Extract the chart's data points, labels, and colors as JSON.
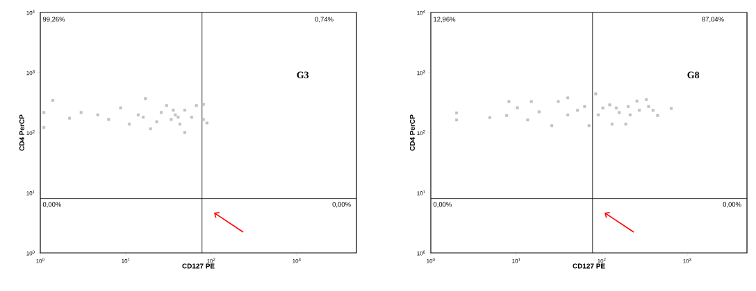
{
  "chart_data": [
    {
      "type": "scatter",
      "xlabel": "CD127 PE",
      "ylabel": "CD4 PerCP",
      "log": "xy",
      "marker": "square",
      "xlim": [
        1,
        5000
      ],
      "ylim": [
        1,
        10000
      ],
      "xticks": [
        {
          "value": 1,
          "label": "10$^{0}$"
        },
        {
          "value": 10,
          "label": "10$^{1}$"
        },
        {
          "value": 100,
          "label": "10$^{2}$"
        },
        {
          "value": 1000,
          "label": "10$^{3}$"
        }
      ],
      "yticks": [
        {
          "value": 1,
          "label": "10$^{0}$"
        },
        {
          "value": 10,
          "label": "10$^{1}$"
        },
        {
          "value": 100,
          "label": "10$^{2}$"
        },
        {
          "value": 1000,
          "label": "10$^{3}$"
        },
        {
          "value": 10000,
          "label": "10$^{4}$"
        }
      ],
      "ref_lines": [
        {
          "axis": "x",
          "value": 78,
          "color": "#000000"
        },
        {
          "axis": "y",
          "value": 8,
          "color": "#000000"
        }
      ],
      "annotations": [
        "99,26%",
        "0,74%",
        "0,00%",
        "0,00%",
        "G3"
      ],
      "series": [
        {
          "color": "#c0c0c0",
          "x": [
            1.1,
            1.4,
            1.1,
            2.2,
            3.0,
            4.7,
            6.3,
            8.7,
            11,
            14,
            17,
            19.5,
            26,
            30,
            34,
            38,
            43,
            49,
            49,
            59,
            67,
            81,
            89,
            81,
            23,
            16,
            36,
            41
          ],
          "values": [
            217,
            344,
            122,
            174,
            217,
            198,
            166,
            259,
            139,
            198,
            370,
            116,
            217,
            283,
            166,
            198,
            139,
            237,
            101,
            181,
            283,
            166,
            145,
            296,
            152,
            181,
            237,
            181
          ]
        }
      ]
    },
    {
      "type": "scatter",
      "xlabel": "CD127 PE",
      "ylabel": "CD4 PerCP",
      "log": "xy",
      "marker": "square",
      "xlim": [
        1,
        5000
      ],
      "ylim": [
        1,
        10000
      ],
      "xticks": [
        {
          "value": 1,
          "label": "10$^{0}$"
        },
        {
          "value": 10,
          "label": "10$^{1}$"
        },
        {
          "value": 100,
          "label": "10$^{2}$"
        },
        {
          "value": 1000,
          "label": "10$^{3}$"
        }
      ],
      "yticks": [
        {
          "value": 1,
          "label": "10$^{0}$"
        },
        {
          "value": 10,
          "label": "10$^{1}$"
        },
        {
          "value": 100,
          "label": "10$^{2}$"
        },
        {
          "value": 1000,
          "label": "10$^{3}$"
        },
        {
          "value": 10000,
          "label": "10$^{4}$"
        }
      ],
      "ref_lines": [
        {
          "axis": "x",
          "value": 78,
          "color": "#000000"
        },
        {
          "axis": "y",
          "value": 8,
          "color": "#000000"
        }
      ],
      "annotations": [
        "12,96%",
        "87,04%",
        "0,00%",
        "0,00%",
        "G8"
      ],
      "series": [
        {
          "color": "#c0c0c0",
          "x": [
            2.0,
            2.0,
            4.9,
            7.7,
            8.2,
            10.3,
            13.6,
            15,
            18.5,
            26,
            31,
            40,
            40,
            52,
            63,
            71,
            85,
            91,
            103,
            132,
            148,
            191,
            204,
            215,
            258,
            275,
            332,
            353,
            398,
            450,
            650,
            124,
            160
          ],
          "values": [
            163,
            213,
            178,
            193,
            330,
            260,
            163,
            330,
            222,
            131,
            330,
            380,
            198,
            236,
            272,
            131,
            443,
            198,
            258,
            139,
            258,
            139,
            272,
            198,
            336,
            236,
            355,
            272,
            236,
            193,
            253,
            290,
            216
          ]
        }
      ]
    }
  ]
}
